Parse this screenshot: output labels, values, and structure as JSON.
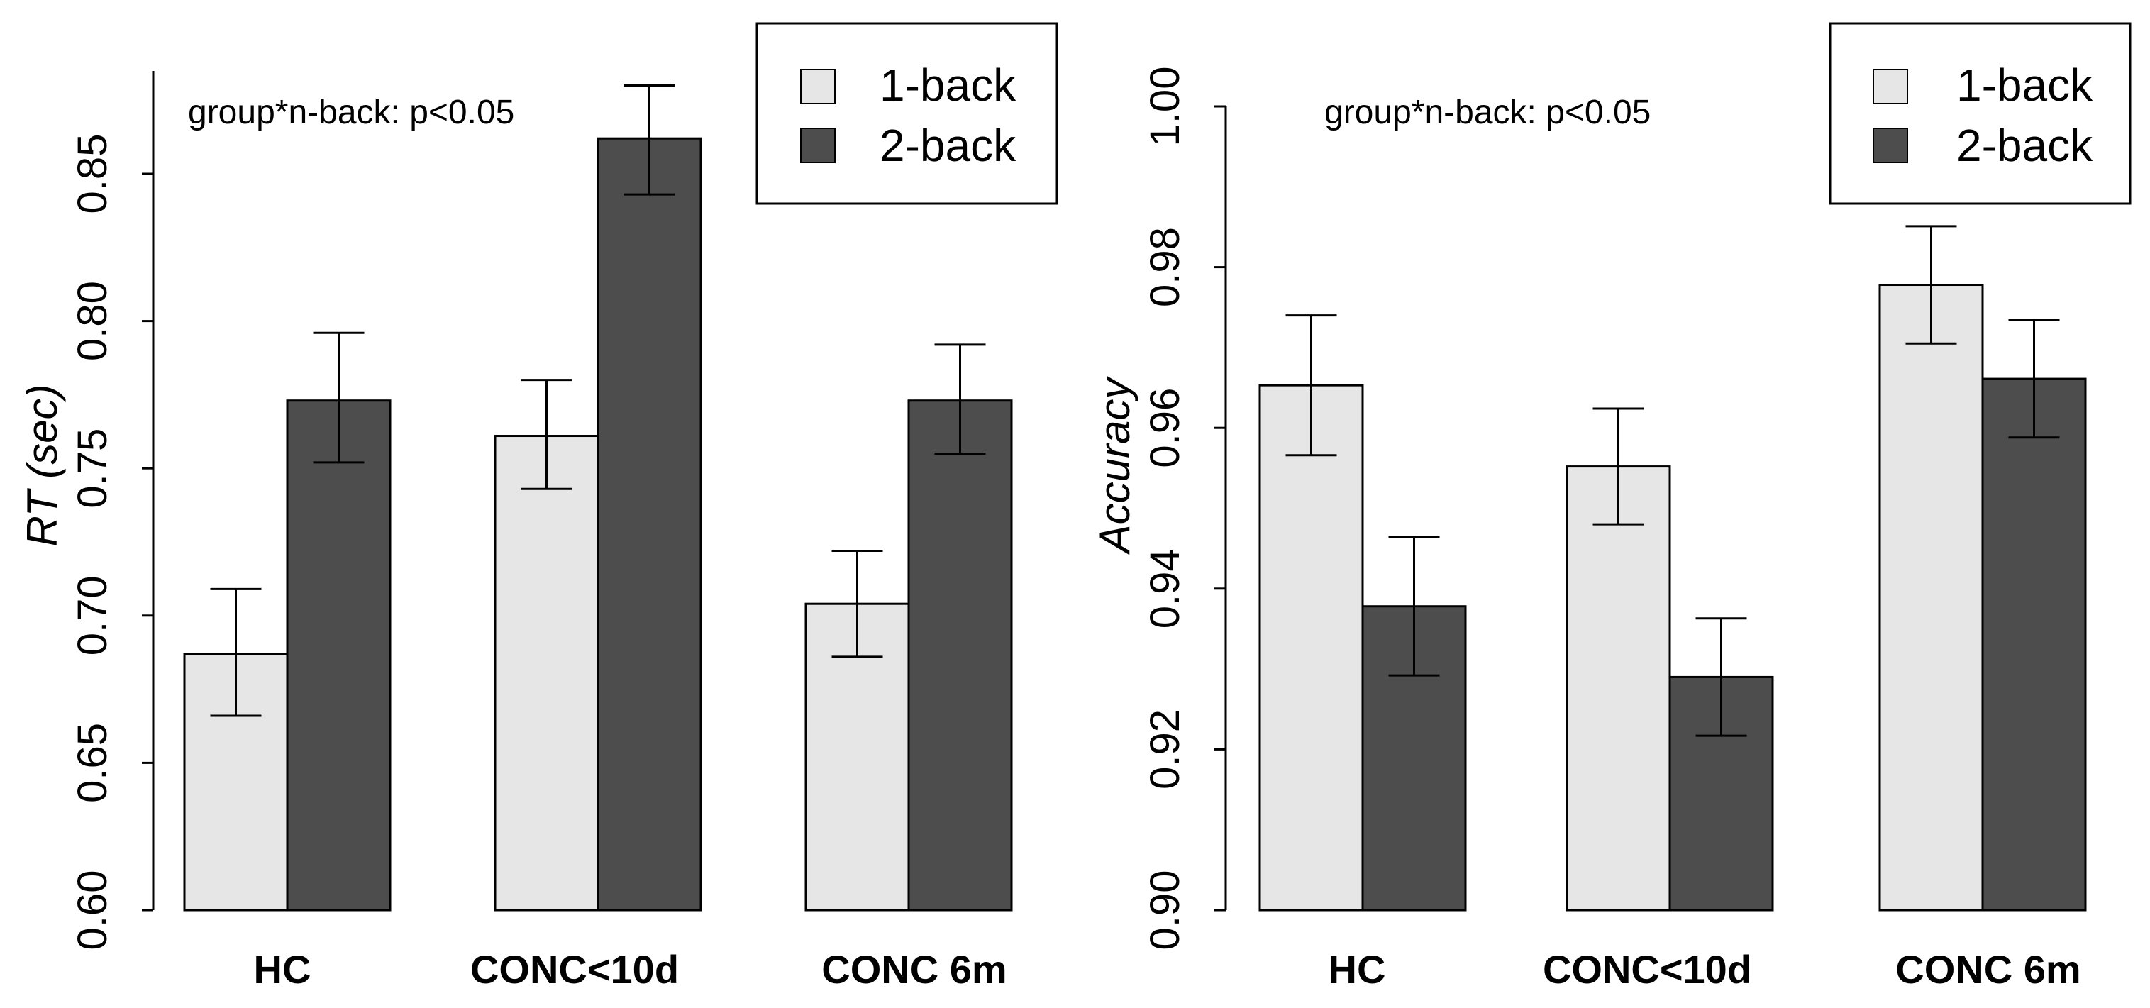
{
  "colors": {
    "series_1back": "#e6e6e6",
    "series_2back": "#4d4d4d",
    "stroke": "#000000"
  },
  "chart_data": [
    {
      "type": "bar",
      "title": "",
      "annotation": "group*n-back: p<0.05",
      "xlabel": "",
      "ylabel_main": "RT",
      "ylabel_unit": "(sec)",
      "ylim": [
        0.6,
        0.88
      ],
      "yticks": [
        "0.60",
        "0.65",
        "0.70",
        "0.75",
        "0.80",
        "0.85"
      ],
      "ytick_values": [
        0.6,
        0.65,
        0.7,
        0.75,
        0.8,
        0.85
      ],
      "categories": [
        "HC",
        "CONC<10d",
        "CONC 6m"
      ],
      "legend_position": "top-right",
      "series": [
        {
          "name": "1-back",
          "values": [
            0.687,
            0.761,
            0.704
          ],
          "err_low": [
            0.666,
            0.743,
            0.686
          ],
          "err_high": [
            0.709,
            0.78,
            0.722
          ]
        },
        {
          "name": "2-back",
          "values": [
            0.773,
            0.862,
            0.773
          ],
          "err_low": [
            0.752,
            0.843,
            0.755
          ],
          "err_high": [
            0.796,
            0.88,
            0.792
          ]
        }
      ]
    },
    {
      "type": "bar",
      "title": "",
      "annotation": "group*n-back: p<0.05",
      "xlabel": "",
      "ylabel_main": "Accuracy",
      "ylabel_unit": "",
      "ylim": [
        0.9,
        1.0
      ],
      "yticks": [
        "0.90",
        "0.92",
        "0.94",
        "0.96",
        "0.98",
        "1.00"
      ],
      "ytick_values": [
        0.9,
        0.92,
        0.94,
        0.96,
        0.98,
        1.0
      ],
      "categories": [
        "HC",
        "CONC<10d",
        "CONC 6m"
      ],
      "legend_position": "top-right",
      "series": [
        {
          "name": "1-back",
          "values": [
            0.9653,
            0.9552,
            0.9778
          ],
          "err_low": [
            0.9566,
            0.948,
            0.9705
          ],
          "err_high": [
            0.974,
            0.9624,
            0.9851
          ]
        },
        {
          "name": "2-back",
          "values": [
            0.9378,
            0.929,
            0.9661
          ],
          "err_low": [
            0.9292,
            0.9217,
            0.9588
          ],
          "err_high": [
            0.9464,
            0.9363,
            0.9734
          ]
        }
      ]
    }
  ]
}
